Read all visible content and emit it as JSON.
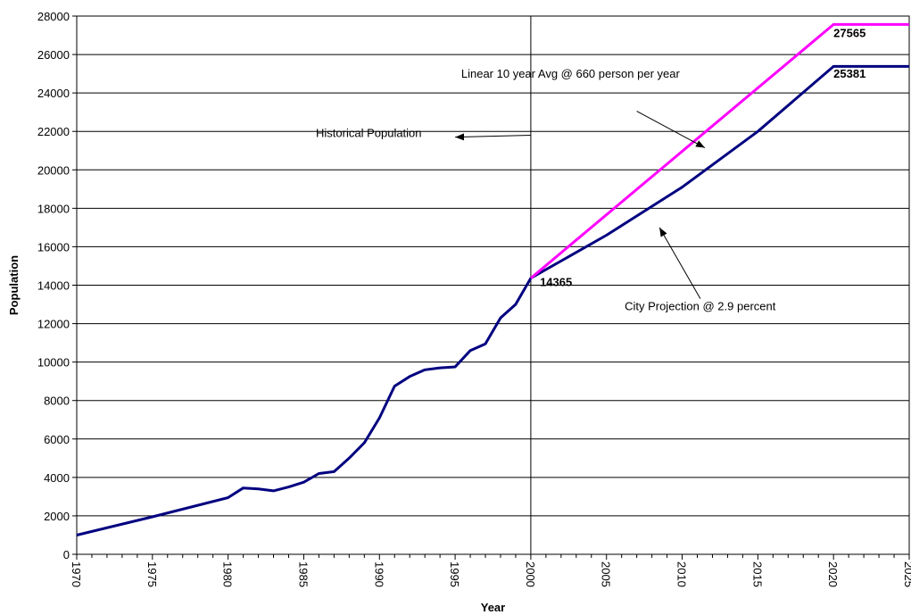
{
  "chart_data": {
    "type": "line",
    "title": "",
    "xlabel": "Year",
    "ylabel": "Population",
    "xlim": [
      1970,
      2025
    ],
    "ylim": [
      0,
      28000
    ],
    "x_ticks": [
      1970,
      1975,
      1980,
      1985,
      1990,
      1995,
      2000,
      2005,
      2010,
      2015,
      2020,
      2025
    ],
    "y_ticks": [
      0,
      2000,
      4000,
      6000,
      8000,
      10000,
      12000,
      14000,
      16000,
      18000,
      20000,
      22000,
      24000,
      26000,
      28000
    ],
    "grid": "horizontal",
    "legend": "none",
    "series": [
      {
        "color": "#000080",
        "points": [
          [
            1970,
            1000
          ],
          [
            1975,
            1950
          ],
          [
            1980,
            2950
          ],
          [
            1981,
            3450
          ],
          [
            1982,
            3400
          ],
          [
            1983,
            3300
          ],
          [
            1984,
            3500
          ],
          [
            1985,
            3750
          ],
          [
            1986,
            4200
          ],
          [
            1987,
            4300
          ],
          [
            1988,
            5000
          ],
          [
            1989,
            5800
          ],
          [
            1990,
            7100
          ],
          [
            1991,
            8750
          ],
          [
            1992,
            9250
          ],
          [
            1993,
            9600
          ],
          [
            1994,
            9700
          ],
          [
            1995,
            9750
          ],
          [
            1996,
            10600
          ],
          [
            1997,
            10950
          ],
          [
            1998,
            12300
          ],
          [
            1999,
            13000
          ],
          [
            2000,
            14365
          ],
          [
            2005,
            16600
          ],
          [
            2010,
            19100
          ],
          [
            2015,
            22000
          ],
          [
            2020,
            25381
          ],
          [
            2025,
            25381
          ]
        ]
      },
      {
        "color": "#ff00ff",
        "points": [
          [
            2000,
            14365
          ],
          [
            2020,
            27565
          ],
          [
            2025,
            27565
          ]
        ]
      }
    ],
    "vertical_marker": {
      "x": 2000,
      "color": "#000000"
    },
    "annotations": [
      {
        "text": "Historical Population",
        "text_at": [
          1985.8,
          21700
        ],
        "arrow_from": [
          2000,
          21800
        ],
        "arrow_to": [
          1995,
          21700
        ]
      },
      {
        "text": "Linear 10 year Avg  @ 660 person per year",
        "text_at": [
          1995.4,
          24800
        ],
        "arrow_from": [
          2007,
          23050
        ],
        "arrow_to": [
          2011.5,
          21150
        ]
      },
      {
        "text": "City Projection  @ 2.9 percent",
        "text_at": [
          2006.2,
          12700
        ],
        "arrow_from": [
          2011.2,
          13300
        ],
        "arrow_to": [
          2008.5,
          17000
        ]
      }
    ],
    "data_labels": [
      {
        "text": "14365",
        "at": [
          2000.6,
          13950
        ]
      },
      {
        "text": "27565",
        "at": [
          2020,
          26900
        ]
      },
      {
        "text": "25381",
        "at": [
          2020,
          24800
        ]
      }
    ]
  }
}
